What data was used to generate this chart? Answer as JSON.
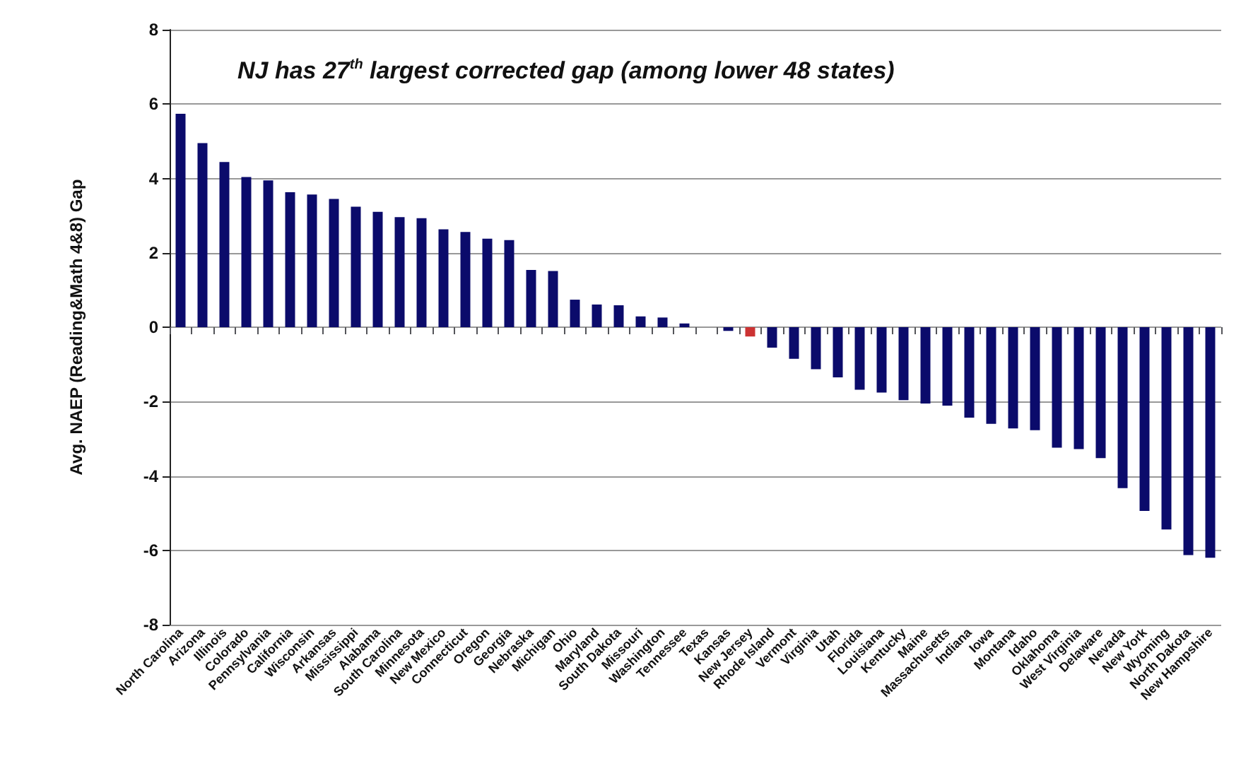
{
  "chart_data": {
    "type": "bar",
    "title": "NJ has 27$^{th}$ largest corrected gap (among lower 48 states)",
    "ylabel": "Avg. NAEP (Reading&Math 4&8) Gap",
    "categories": [
      "North Carolina",
      "Arizona",
      "Illinois",
      "Colorado",
      "Pennsylvania",
      "California",
      "Wisconsin",
      "Arkansas",
      "Mississippi",
      "Alabama",
      "South Carolina",
      "Minnesota",
      "New Mexico",
      "Connecticut",
      "Oregon",
      "Georgia",
      "Nebraska",
      "Michigan",
      "Ohio",
      "Maryland",
      "South Dakota",
      "Missouri",
      "Washington",
      "Tennessee",
      "Texas",
      "Kansas",
      "New Jersey",
      "Rhode Island",
      "Vermont",
      "Virginia",
      "Utah",
      "Florida",
      "Louisiana",
      "Kentucky",
      "Maine",
      "Massachusetts",
      "Indiana",
      "Iowa",
      "Montana",
      "Idaho",
      "Oklahoma",
      "West Virginia",
      "Delaware",
      "Nevada",
      "New York",
      "Wyoming",
      "North Dakota",
      "New Hampshire"
    ],
    "values": [
      5.74,
      4.95,
      4.44,
      4.04,
      3.95,
      3.63,
      3.57,
      3.45,
      3.24,
      3.1,
      2.96,
      2.93,
      2.63,
      2.56,
      2.38,
      2.34,
      1.54,
      1.51,
      0.74,
      0.61,
      0.59,
      0.29,
      0.26,
      0.1,
      0.0,
      -0.1,
      -0.25,
      -0.55,
      -0.85,
      -1.13,
      -1.35,
      -1.68,
      -1.76,
      -1.96,
      -2.05,
      -2.11,
      -2.43,
      -2.6,
      -2.72,
      -2.77,
      -3.24,
      -3.28,
      -3.52,
      -4.33,
      -4.94,
      -5.44,
      -6.13,
      -6.2
    ],
    "colors": [
      "#0b0b6b",
      "#0b0b6b",
      "#0b0b6b",
      "#0b0b6b",
      "#0b0b6b",
      "#0b0b6b",
      "#0b0b6b",
      "#0b0b6b",
      "#0b0b6b",
      "#0b0b6b",
      "#0b0b6b",
      "#0b0b6b",
      "#0b0b6b",
      "#0b0b6b",
      "#0b0b6b",
      "#0b0b6b",
      "#0b0b6b",
      "#0b0b6b",
      "#0b0b6b",
      "#0b0b6b",
      "#0b0b6b",
      "#0b0b6b",
      "#0b0b6b",
      "#0b0b6b",
      "#0b0b6b",
      "#0b0b6b",
      "#cc3333",
      "#0b0b6b",
      "#0b0b6b",
      "#0b0b6b",
      "#0b0b6b",
      "#0b0b6b",
      "#0b0b6b",
      "#0b0b6b",
      "#0b0b6b",
      "#0b0b6b",
      "#0b0b6b",
      "#0b0b6b",
      "#0b0b6b",
      "#0b0b6b",
      "#0b0b6b",
      "#0b0b6b",
      "#0b0b6b",
      "#0b0b6b",
      "#0b0b6b",
      "#0b0b6b",
      "#0b0b6b",
      "#0b0b6b"
    ],
    "ylim": [
      -8,
      8
    ],
    "yticks": [
      -8,
      -6,
      -4,
      -2,
      0,
      2,
      4,
      6,
      8
    ],
    "grid": "y"
  }
}
